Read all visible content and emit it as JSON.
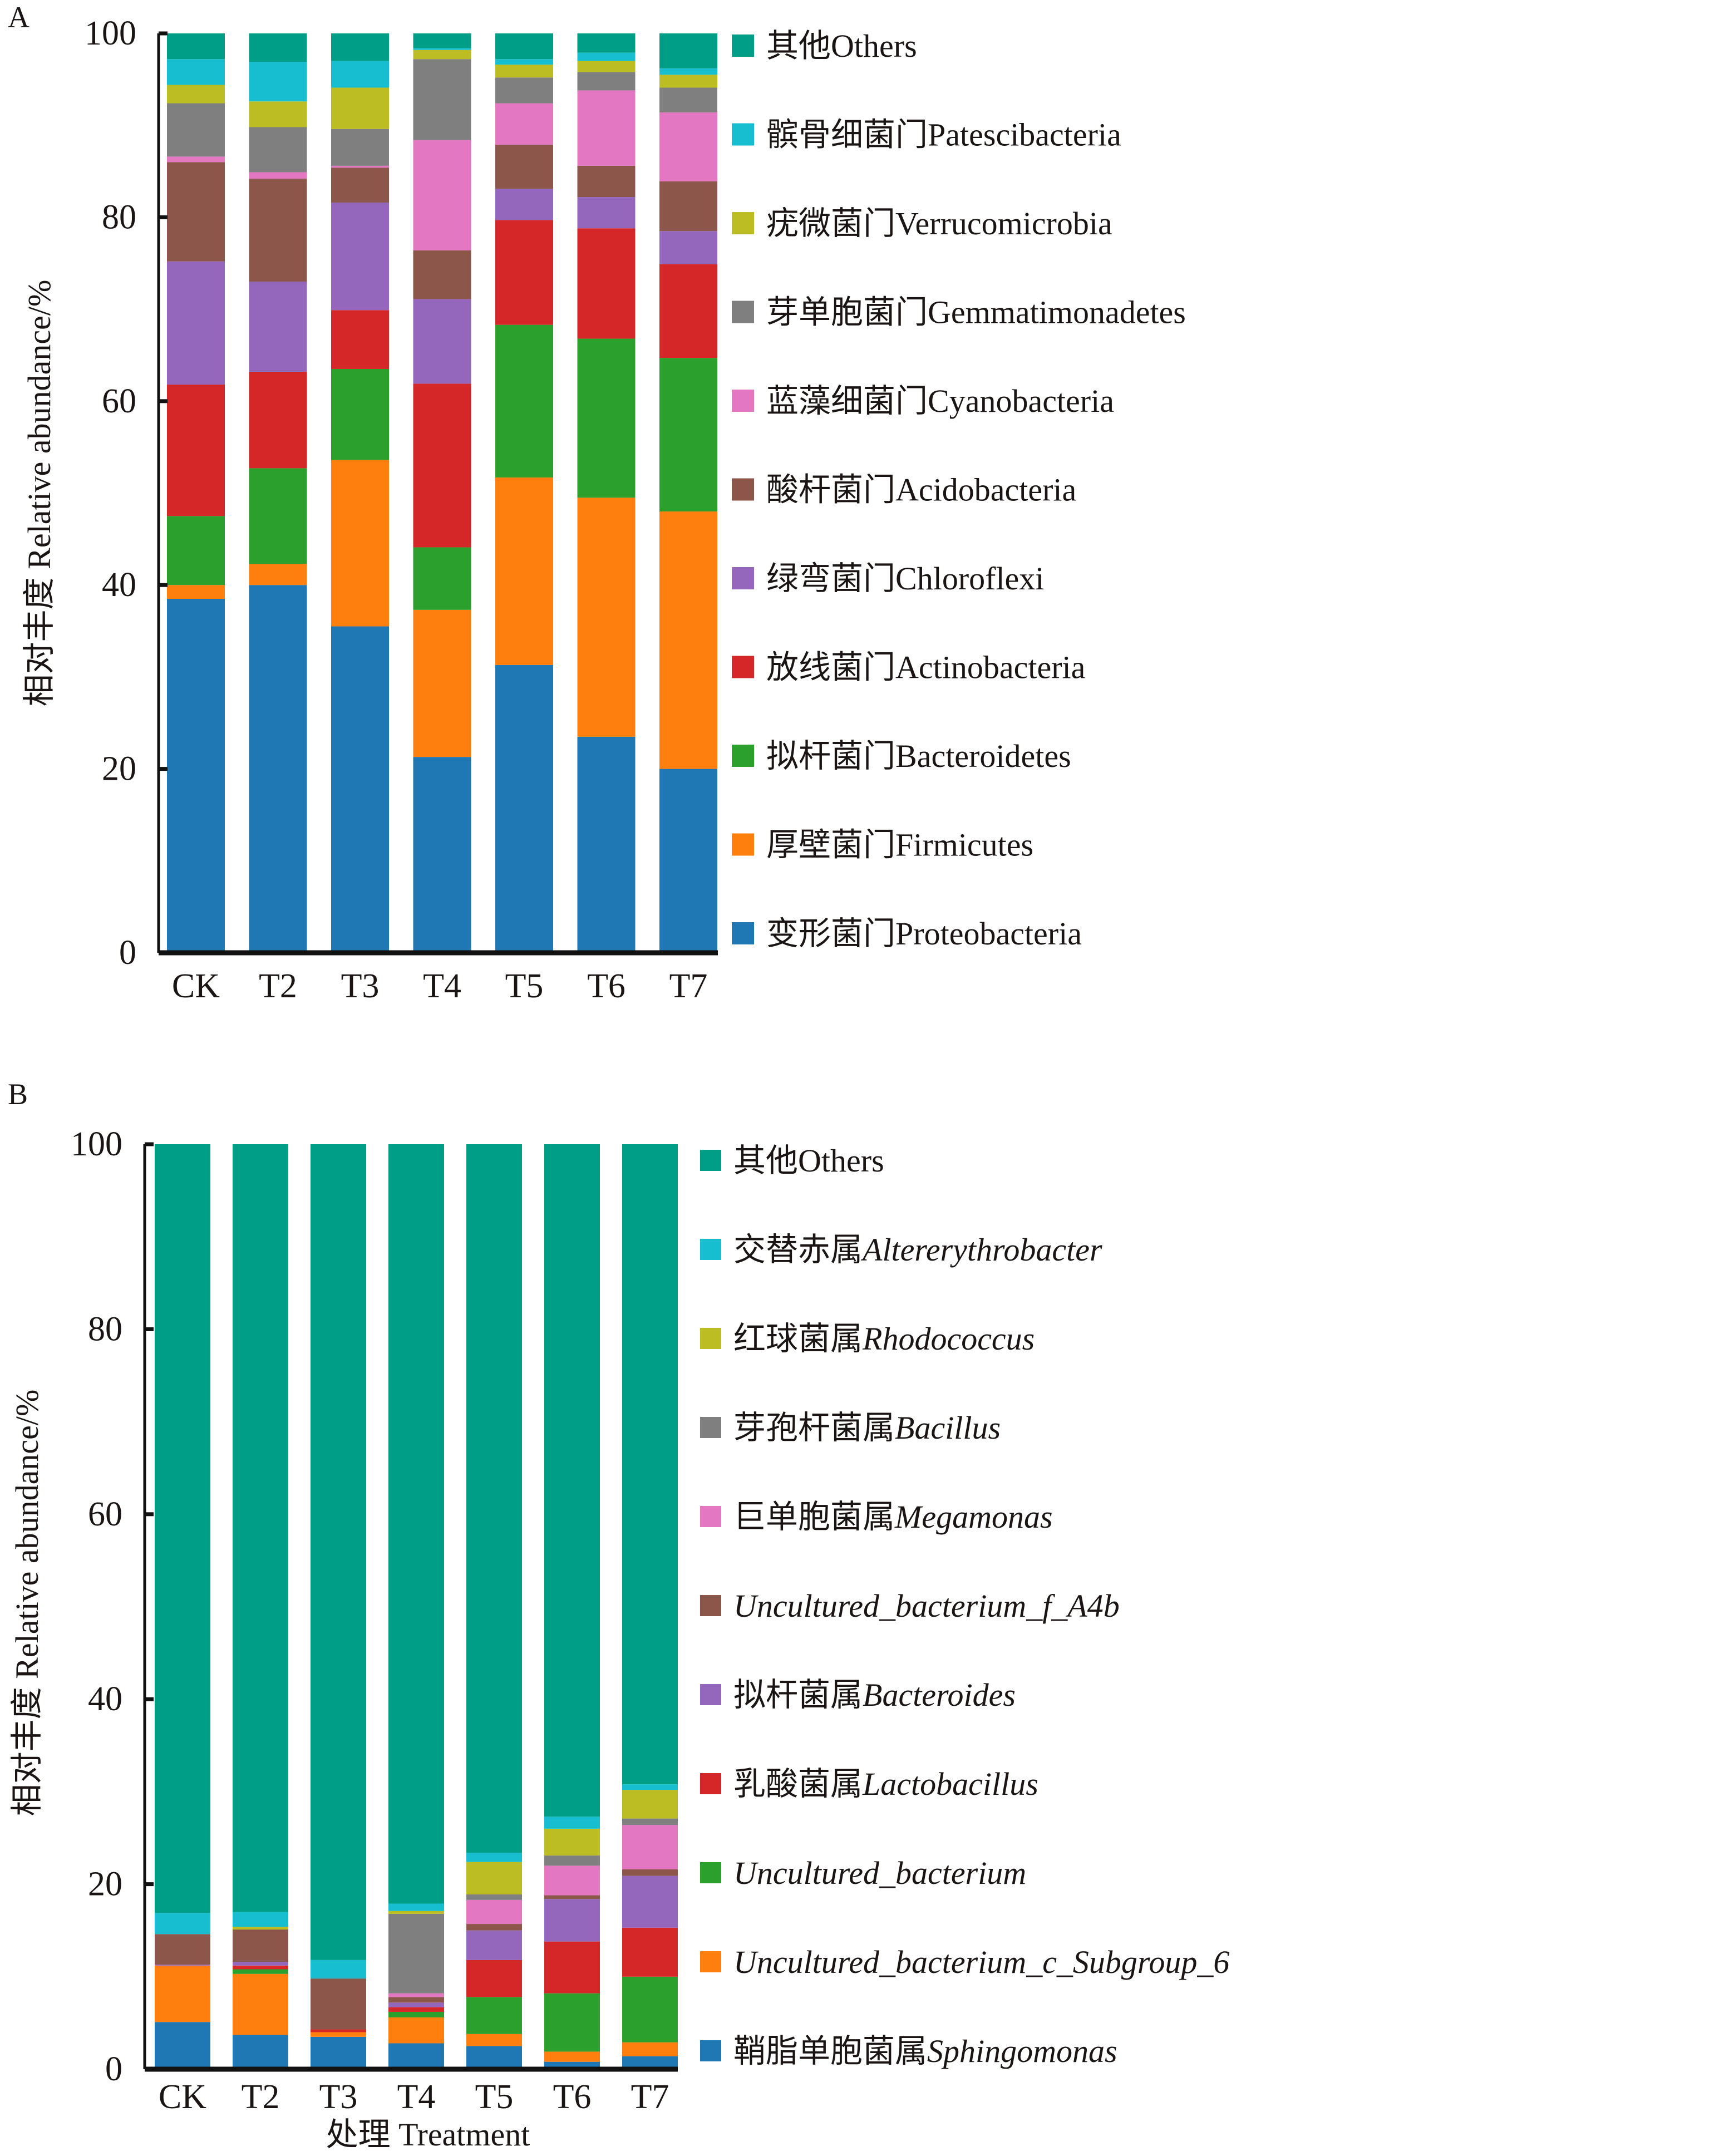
{
  "panels": {
    "A": {
      "letter": "A"
    },
    "B": {
      "letter": "B"
    }
  },
  "chart_data": [
    {
      "id": "A",
      "type": "bar",
      "stacked": true,
      "title": "",
      "xlabel": "",
      "ylabel": "相对丰度  Relative abundance/%",
      "ylim": [
        0,
        100
      ],
      "yticks": [
        0,
        20,
        40,
        60,
        80,
        100
      ],
      "categories": [
        "CK",
        "T2",
        "T3",
        "T4",
        "T5",
        "T6",
        "T7"
      ],
      "legend_position": "right",
      "grid": false,
      "series": [
        {
          "name": "变形菌门Proteobacteria",
          "cn": "变形菌门",
          "latin": "Proteobacteria",
          "italic": false,
          "color": "#1f77b4",
          "values": [
            38.5,
            40.0,
            35.5,
            21.3,
            31.3,
            23.5,
            20.0
          ]
        },
        {
          "name": "厚壁菌门Firmicutes",
          "cn": "厚壁菌门",
          "latin": "Firmicutes",
          "italic": false,
          "color": "#ff7f0e",
          "values": [
            1.5,
            2.3,
            18.1,
            16.0,
            20.4,
            26.0,
            28.0
          ]
        },
        {
          "name": "拟杆菌门Bacteroidetes",
          "cn": "拟杆菌门",
          "latin": "Bacteroidetes",
          "italic": false,
          "color": "#2ca02c",
          "values": [
            7.5,
            10.4,
            9.9,
            6.8,
            16.6,
            17.3,
            16.7
          ]
        },
        {
          "name": "放线菌门Actinobacteria",
          "cn": "放线菌门",
          "latin": "Actinobacteria",
          "italic": false,
          "color": "#d62728",
          "values": [
            14.3,
            10.5,
            6.4,
            17.8,
            11.4,
            12.0,
            10.2
          ]
        },
        {
          "name": "绿弯菌门Chloroflexi",
          "cn": "绿弯菌门",
          "latin": "Chloroflexi",
          "italic": false,
          "color": "#9467bd",
          "values": [
            13.4,
            9.8,
            11.7,
            9.2,
            3.4,
            3.4,
            3.6
          ]
        },
        {
          "name": "酸杆菌门Acidobacteria",
          "cn": "酸杆菌门",
          "latin": "Acidobacteria",
          "italic": false,
          "color": "#8c564b",
          "values": [
            10.8,
            11.2,
            3.8,
            5.3,
            4.8,
            3.4,
            5.4
          ]
        },
        {
          "name": "蓝藻细菌门Cyanobacteria",
          "cn": "蓝藻细菌门",
          "latin": "Cyanobacteria",
          "italic": false,
          "color": "#e377c2",
          "values": [
            0.6,
            0.7,
            0.2,
            12.0,
            4.5,
            8.2,
            7.5
          ]
        },
        {
          "name": "芽单胞菌门Gemmatimonadetes",
          "cn": "芽单胞菌门",
          "latin": "Gemmatimonadetes",
          "italic": false,
          "color": "#7f7f7f",
          "values": [
            5.8,
            4.9,
            4.0,
            8.8,
            2.8,
            2.0,
            2.7
          ]
        },
        {
          "name": "疣微菌门Verrucomicrobia",
          "cn": "疣微菌门",
          "latin": "Verrucomicrobia",
          "italic": false,
          "color": "#bcbd22",
          "values": [
            2.0,
            2.8,
            4.5,
            1.0,
            1.4,
            1.2,
            1.4
          ]
        },
        {
          "name": "髌骨细菌门Patescibacteria",
          "cn": "髌骨细菌门",
          "latin": "Patescibacteria",
          "italic": false,
          "color": "#17becf",
          "values": [
            2.8,
            4.3,
            2.9,
            0.2,
            0.6,
            0.9,
            0.7
          ]
        },
        {
          "name": "其他Others",
          "cn": "其他",
          "latin": "Others",
          "italic": false,
          "color": "#009e86",
          "values": [
            2.8,
            3.1,
            3.0,
            1.6,
            2.8,
            2.1,
            3.8
          ]
        }
      ]
    },
    {
      "id": "B",
      "type": "bar",
      "stacked": true,
      "title": "",
      "xlabel": "处理  Treatment",
      "ylabel": "相对丰度  Relative abundance/%",
      "ylim": [
        0,
        100
      ],
      "yticks": [
        0,
        20,
        40,
        60,
        80,
        100
      ],
      "categories": [
        "CK",
        "T2",
        "T3",
        "T4",
        "T5",
        "T6",
        "T7"
      ],
      "legend_position": "right",
      "grid": false,
      "series": [
        {
          "name": "鞘脂单胞菌属Sphingomonas",
          "cn": "鞘脂单胞菌属",
          "latin": "Sphingomonas",
          "italic": true,
          "color": "#1f77b4",
          "values": [
            5.1,
            3.7,
            3.5,
            2.8,
            2.5,
            0.8,
            1.4
          ]
        },
        {
          "name": "Uncultured_bacterium_c_Subgroup_6",
          "cn": "",
          "latin": "Uncultured_bacterium_c_Subgroup_6",
          "italic": true,
          "color": "#ff7f0e",
          "values": [
            6.1,
            6.6,
            0.5,
            2.8,
            1.3,
            1.1,
            1.5
          ]
        },
        {
          "name": "Uncultured_bacterium",
          "cn": "",
          "latin": "Uncultured_bacterium",
          "italic": true,
          "color": "#2ca02c",
          "values": [
            0.0,
            0.5,
            0.0,
            0.6,
            4.0,
            6.3,
            7.1
          ]
        },
        {
          "name": "乳酸菌属Lactobacillus",
          "cn": "乳酸菌属",
          "latin": "Lactobacillus",
          "italic": true,
          "color": "#d62728",
          "values": [
            0.0,
            0.4,
            0.3,
            0.5,
            4.0,
            5.6,
            5.3
          ]
        },
        {
          "name": "拟杆菌属Bacteroides",
          "cn": "拟杆菌属",
          "latin": "Bacteroides",
          "italic": true,
          "color": "#9467bd",
          "values": [
            0.1,
            0.4,
            0.0,
            0.5,
            3.2,
            4.6,
            5.6
          ]
        },
        {
          "name": "Uncultured_bacterium_f_A4b",
          "cn": "",
          "latin": "Uncultured_bacterium_f_A4b",
          "italic": true,
          "color": "#8c564b",
          "values": [
            3.3,
            3.5,
            5.5,
            0.6,
            0.7,
            0.4,
            0.7
          ]
        },
        {
          "name": "巨单胞菌属Megamonas",
          "cn": "巨单胞菌属",
          "latin": "Megamonas",
          "italic": true,
          "color": "#e377c2",
          "values": [
            0.0,
            0.0,
            0.0,
            0.4,
            2.6,
            3.2,
            4.8
          ]
        },
        {
          "name": "芽孢杆菌属Bacillus",
          "cn": "芽孢杆菌属",
          "latin": "Bacillus",
          "italic": true,
          "color": "#7f7f7f",
          "values": [
            0.0,
            0.0,
            0.0,
            8.6,
            0.6,
            1.1,
            0.7
          ]
        },
        {
          "name": "红球菌属Rhodococcus",
          "cn": "红球菌属",
          "latin": "Rhodococcus",
          "italic": true,
          "color": "#bcbd22",
          "values": [
            0.0,
            0.3,
            0.0,
            0.3,
            3.5,
            2.9,
            3.1
          ]
        },
        {
          "name": "交替赤属Altererythrobacter",
          "cn": "交替赤属",
          "latin": "Altererythrobacter",
          "italic": true,
          "color": "#17becf",
          "values": [
            2.3,
            1.6,
            2.0,
            0.8,
            1.0,
            1.3,
            0.6
          ]
        },
        {
          "name": "其他Others",
          "cn": "其他",
          "latin": "Others",
          "italic": false,
          "color": "#009e86",
          "values": [
            83.1,
            83.0,
            88.2,
            82.1,
            76.6,
            72.7,
            69.2
          ]
        }
      ]
    }
  ]
}
